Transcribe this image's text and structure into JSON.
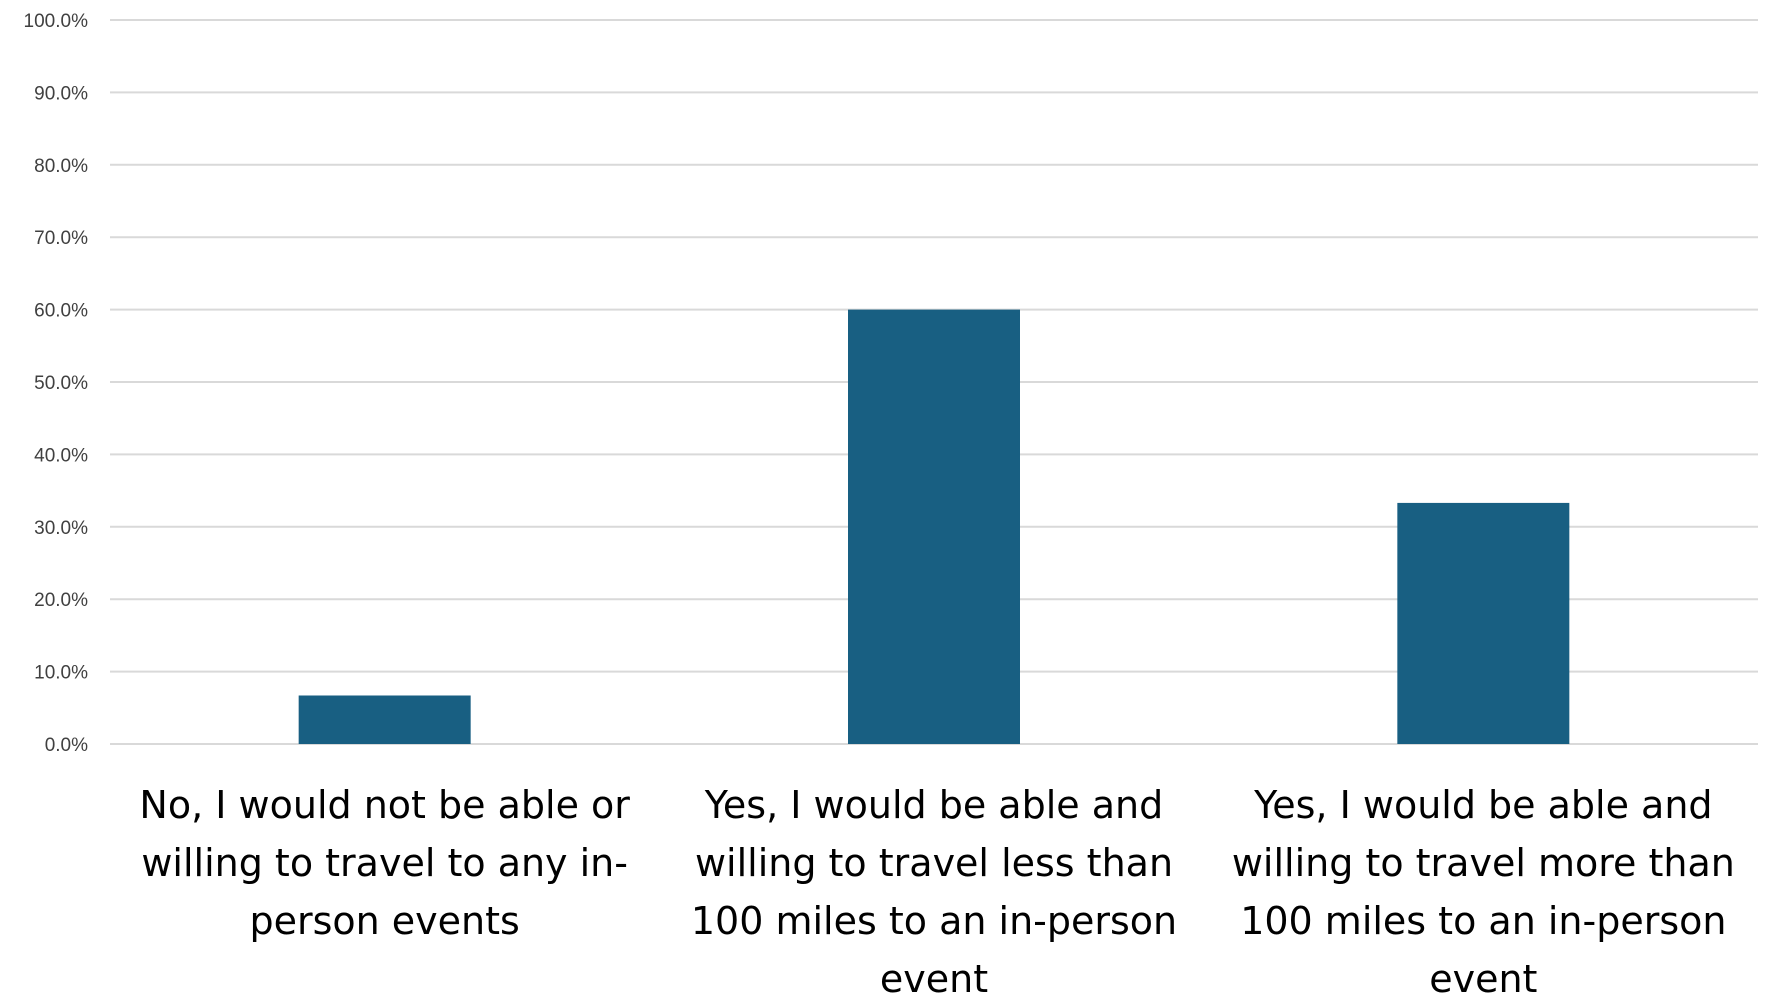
{
  "chart_data": {
    "type": "bar",
    "title": "",
    "xlabel": "",
    "ylabel": "",
    "categories": [
      [
        "No, I would not be able or",
        "willing to travel to any in-",
        "person events"
      ],
      [
        "Yes, I would be able and",
        "willing to travel less than",
        "100 miles to an in-person",
        "event"
      ],
      [
        "Yes, I would be able and",
        "willing to travel more than",
        "100 miles to an in-person",
        "event"
      ]
    ],
    "values": [
      6.7,
      60.0,
      33.3
    ],
    "ylim": [
      0,
      100
    ],
    "yticks": [
      0,
      10,
      20,
      30,
      40,
      50,
      60,
      70,
      80,
      90,
      100
    ],
    "ytick_labels": [
      "0.0%",
      "10.0%",
      "20.0%",
      "30.0%",
      "40.0%",
      "50.0%",
      "60.0%",
      "70.0%",
      "80.0%",
      "90.0%",
      "100.0%"
    ],
    "grid": true,
    "legend": "none",
    "bar_color": "#185f82"
  }
}
